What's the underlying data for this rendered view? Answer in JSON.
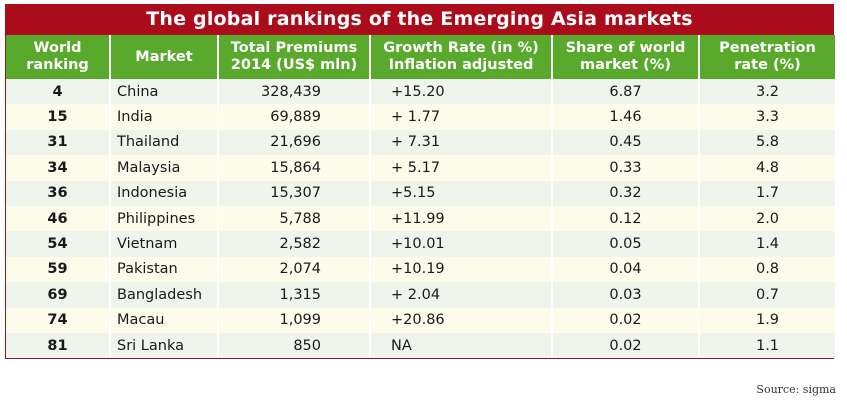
{
  "title": "The global rankings of the Emerging Asia markets",
  "source": "Source: sigma",
  "colors": {
    "title_bg": "#ab0c1b",
    "header_bg": "#58a92c",
    "row_odd": "#eff4ec",
    "row_even": "#fdfbe9"
  },
  "chart_data": {
    "type": "table",
    "title": "The global rankings of the Emerging Asia markets",
    "columns": [
      {
        "line1": "World",
        "line2": "ranking"
      },
      {
        "line1": "Market",
        "line2": ""
      },
      {
        "line1": "Total Premiums",
        "line2": "2014 (US$ mln)"
      },
      {
        "line1": "Growth Rate (in %)",
        "line2": "Inflation adjusted"
      },
      {
        "line1": "Share of world",
        "line2": "market (%)"
      },
      {
        "line1": "Penetration",
        "line2": "rate (%)"
      }
    ],
    "rows": [
      {
        "rank": "4",
        "market": "China",
        "premiums": "328,439",
        "growth": "+15.20",
        "share": "6.87",
        "penetration": "3.2"
      },
      {
        "rank": "15",
        "market": "India",
        "premiums": "69,889",
        "growth": "+ 1.77",
        "share": "1.46",
        "penetration": "3.3"
      },
      {
        "rank": "31",
        "market": "Thailand",
        "premiums": "21,696",
        "growth": "+ 7.31",
        "share": "0.45",
        "penetration": "5.8"
      },
      {
        "rank": "34",
        "market": "Malaysia",
        "premiums": "15,864",
        "growth": "+ 5.17",
        "share": "0.33",
        "penetration": "4.8"
      },
      {
        "rank": "36",
        "market": "Indonesia",
        "premiums": "15,307",
        "growth": "+5.15",
        "share": "0.32",
        "penetration": "1.7"
      },
      {
        "rank": "46",
        "market": "Philippines",
        "premiums": "5,788",
        "growth": "+11.99",
        "share": "0.12",
        "penetration": "2.0"
      },
      {
        "rank": "54",
        "market": "Vietnam",
        "premiums": "2,582",
        "growth": "+10.01",
        "share": "0.05",
        "penetration": "1.4"
      },
      {
        "rank": "59",
        "market": "Pakistan",
        "premiums": "2,074",
        "growth": "+10.19",
        "share": "0.04",
        "penetration": "0.8"
      },
      {
        "rank": "69",
        "market": "Bangladesh",
        "premiums": "1,315",
        "growth": "+ 2.04",
        "share": "0.03",
        "penetration": "0.7"
      },
      {
        "rank": "74",
        "market": "Macau",
        "premiums": "1,099",
        "growth": "+20.86",
        "share": "0.02",
        "penetration": "1.9"
      },
      {
        "rank": "81",
        "market": "Sri Lanka",
        "premiums": "850",
        "growth": "NA",
        "share": "0.02",
        "penetration": "1.1"
      }
    ]
  }
}
